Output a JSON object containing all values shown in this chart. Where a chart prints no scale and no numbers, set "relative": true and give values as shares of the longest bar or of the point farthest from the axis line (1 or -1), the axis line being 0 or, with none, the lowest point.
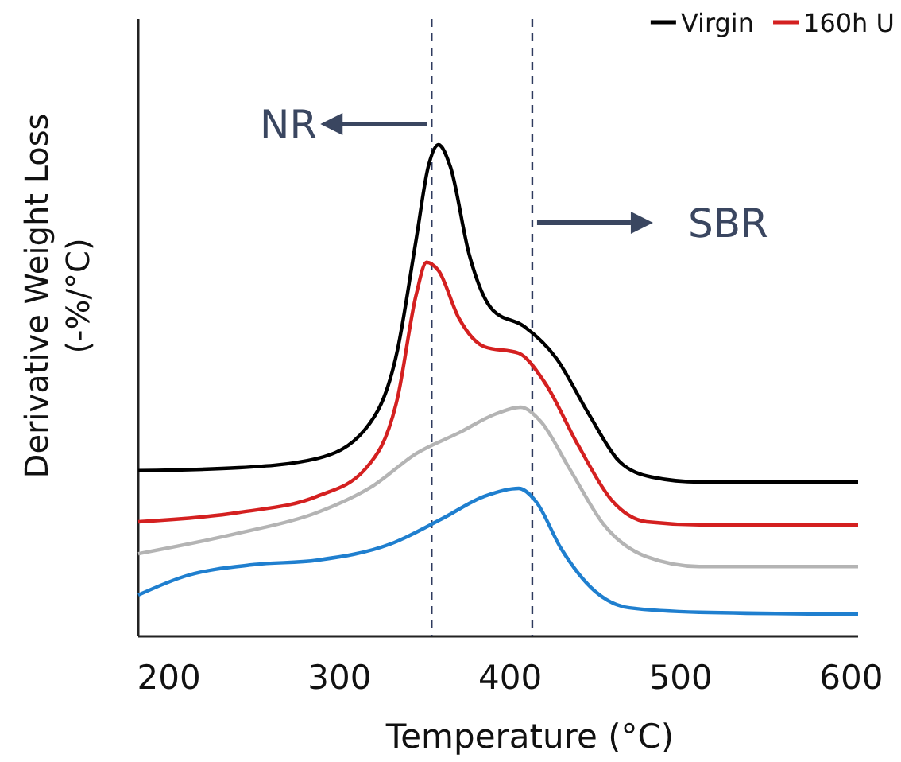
{
  "chart_data": {
    "type": "line",
    "relative": true,
    "xlabel": "Temperature (°C)",
    "ylabel": "Derivative Weight Loss\n(-%/°C)",
    "xlim": [
      182,
      604
    ],
    "xticks": [
      200,
      300,
      400,
      500,
      600
    ],
    "legend": "top right",
    "grid": false,
    "marker": "none",
    "line_style": "solid",
    "annotations": [
      "NR",
      "SBR"
    ],
    "ref_lines": [
      {
        "axis": "x",
        "value": 354,
        "color": "#2e3a5e",
        "line_style": "dashed"
      },
      {
        "axis": "x",
        "value": 413,
        "color": "#2e3a5e",
        "line_style": "dashed"
      }
    ],
    "series": [
      {
        "name": "Virgin",
        "color": "#000000",
        "x": [
          182,
          241,
          287,
          315,
          334,
          345,
          352,
          358,
          365,
          376,
          390,
          408,
          427,
          446,
          464,
          483,
          511,
          604
        ],
        "values": [
          0.337,
          0.343,
          0.362,
          0.421,
          0.583,
          0.809,
          0.955,
          1,
          0.955,
          0.777,
          0.663,
          0.631,
          0.566,
          0.453,
          0.356,
          0.324,
          0.314,
          0.314
        ]
      },
      {
        "name": "160h U",
        "color": "#d42020",
        "x": [
          182,
          241,
          287,
          315,
          334,
          345,
          351,
          358,
          370,
          385,
          405,
          420,
          440,
          460,
          480,
          511,
          604
        ],
        "values": [
          0.233,
          0.252,
          0.285,
          0.34,
          0.485,
          0.696,
          0.761,
          0.744,
          0.647,
          0.589,
          0.576,
          0.518,
          0.388,
          0.275,
          0.233,
          0.227,
          0.227
        ]
      },
      {
        "color": "#b4b4b4",
        "x": [
          182,
          241,
          287,
          320,
          345,
          370,
          392,
          406,
          418,
          435,
          455,
          480,
          511,
          604
        ],
        "values": [
          0.168,
          0.21,
          0.252,
          0.307,
          0.372,
          0.414,
          0.453,
          0.466,
          0.437,
          0.34,
          0.227,
          0.162,
          0.142,
          0.142
        ]
      },
      {
        "color": "#1f7fcf",
        "x": [
          182,
          210,
          250,
          287,
          330,
          360,
          385,
          405,
          415,
          430,
          450,
          470,
          511,
          604
        ],
        "values": [
          0.084,
          0.123,
          0.146,
          0.155,
          0.188,
          0.239,
          0.285,
          0.301,
          0.275,
          0.178,
          0.091,
          0.058,
          0.049,
          0.045
        ]
      }
    ]
  }
}
